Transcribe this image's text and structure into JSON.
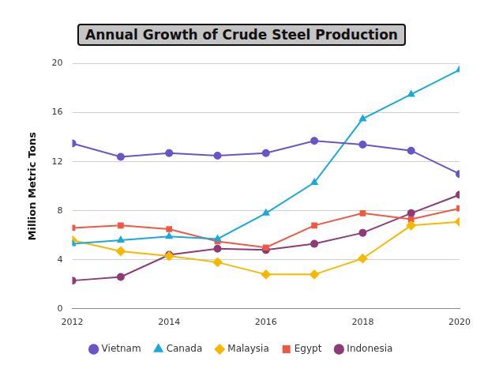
{
  "chart_data": {
    "type": "line",
    "title": "Annual Growth of Crude Steel Production",
    "y_label": "Million Metric Tons",
    "x": [
      2012,
      2013,
      2014,
      2015,
      2016,
      2017,
      2018,
      2019,
      2020
    ],
    "xlim": [
      2012,
      2020
    ],
    "xticks": [
      2012,
      2014,
      2016,
      2018,
      2020
    ],
    "ylim": [
      0,
      20
    ],
    "yticks": [
      0,
      4,
      8,
      12,
      16,
      20
    ],
    "grid": true,
    "legend": "bottom",
    "series": [
      {
        "name": "Vietnam",
        "color": "#6a54c9",
        "marker": "circle",
        "values": [
          13.5,
          12.4,
          12.7,
          12.5,
          12.7,
          13.7,
          13.4,
          12.9,
          11.0
        ]
      },
      {
        "name": "Canada",
        "color": "#1aa9dc",
        "marker": "triangle",
        "values": [
          5.3,
          5.6,
          5.9,
          5.7,
          7.8,
          10.3,
          15.5,
          17.5,
          19.5
        ]
      },
      {
        "name": "Malaysia",
        "color": "#f6b900",
        "marker": "diamond",
        "values": [
          5.6,
          4.7,
          4.3,
          3.8,
          2.8,
          2.8,
          4.1,
          6.8,
          7.1
        ]
      },
      {
        "name": "Egypt",
        "color": "#ef5843",
        "marker": "square",
        "values": [
          6.6,
          6.8,
          6.5,
          5.5,
          5.0,
          6.8,
          7.8,
          7.3,
          8.2
        ]
      },
      {
        "name": "Indonesia",
        "color": "#8e3b78",
        "marker": "circle",
        "values": [
          2.3,
          2.6,
          4.4,
          4.9,
          4.8,
          5.3,
          6.2,
          7.8,
          9.3
        ]
      }
    ]
  }
}
